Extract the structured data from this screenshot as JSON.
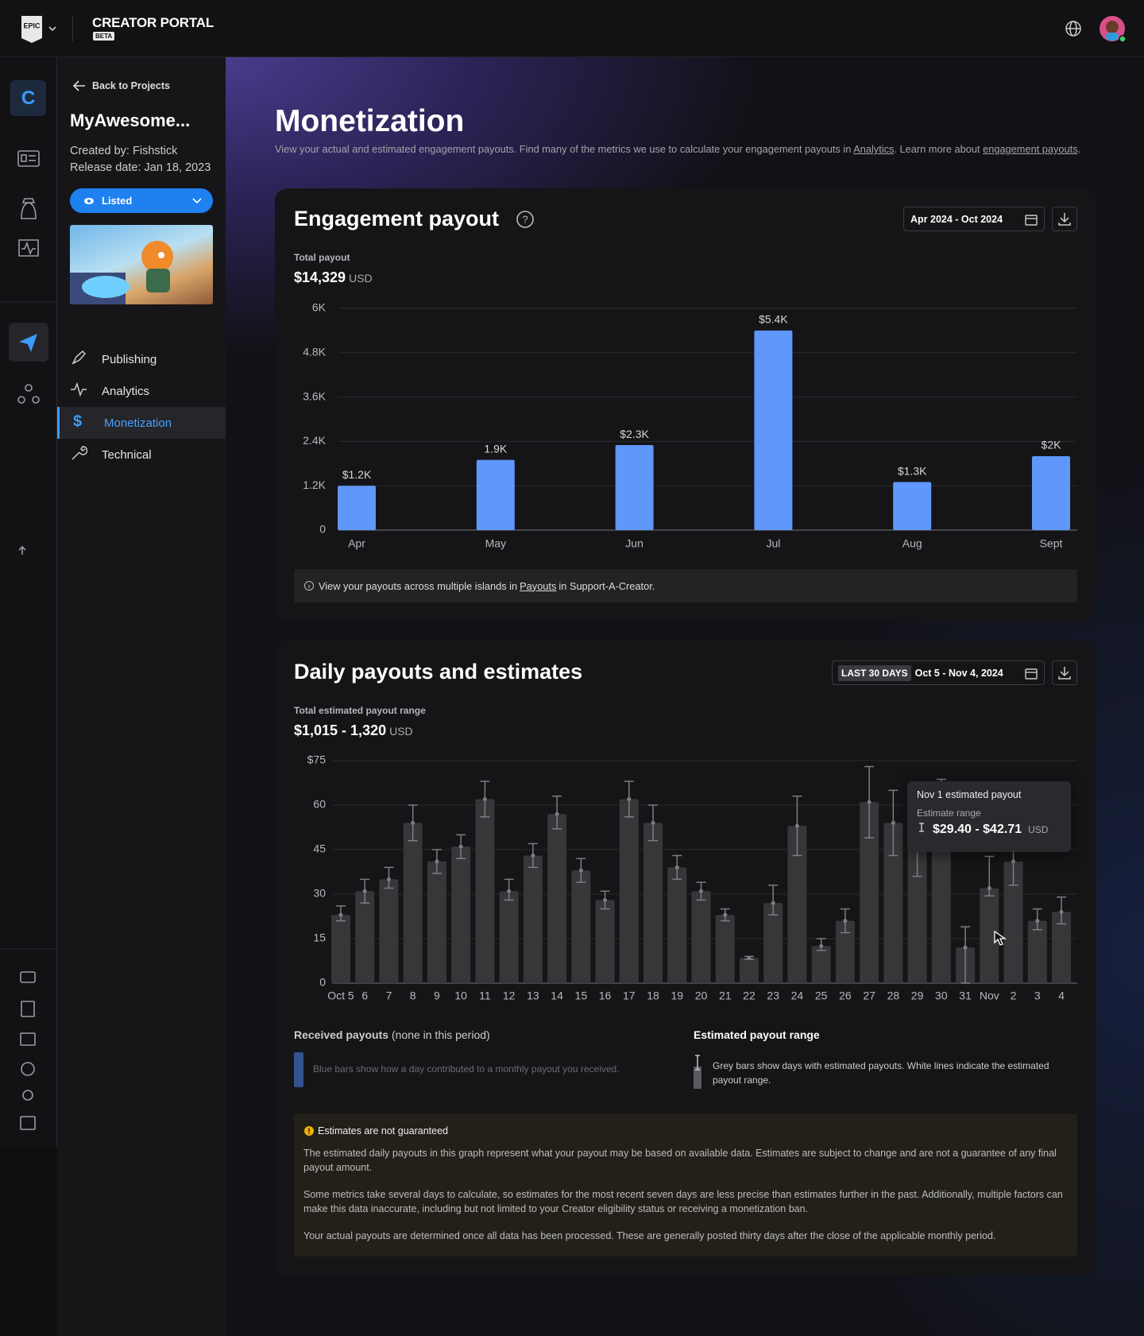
{
  "header": {
    "brand": "CREATOR PORTAL",
    "badge": "BETA"
  },
  "sidebar": {
    "back": "Back to Projects",
    "project": "MyAwesome...",
    "created": "Created by: Fishstick",
    "released": "Release date: Jan 18, 2023",
    "status": "Listed",
    "nav": [
      "Publishing",
      "Analytics",
      "Monetization",
      "Technical"
    ]
  },
  "page": {
    "title": "Monetization",
    "intro": [
      "View your actual and estimated engagement payouts. Find many of the metrics we use to calculate your engagement payouts in ",
      "Analytics",
      ". Learn more about ",
      "engagement payouts",
      "."
    ]
  },
  "engagement": {
    "title": "Engagement payout",
    "date_range": "Apr 2024 - Oct 2024",
    "total_label": "Total payout",
    "total": "$14,329",
    "unit": "USD",
    "note": [
      "View your payouts across multiple islands in ",
      "Payouts",
      " in Support-A-Creator."
    ]
  },
  "daily": {
    "title": "Daily payouts and estimates",
    "badge": "LAST 30 DAYS",
    "date_range": "Oct 5 - Nov 4, 2024",
    "total_label": "Total estimated payout range",
    "total": "$1,015 - 1,320",
    "unit": "USD",
    "tooltip": {
      "title": "Nov 1 estimated payout",
      "label": "Estimate range",
      "range": "$29.40 - $42.71",
      "unit": "USD"
    },
    "legend": {
      "received_title": "Received payouts",
      "received_note": "(none in this period)",
      "received_text": "Blue bars show how a day contributed to a monthly payout you received.",
      "estimated_title": "Estimated payout range",
      "estimated_text": "Grey bars show days with estimated payouts. White lines indicate the estimated payout range."
    },
    "warning": {
      "title": "Estimates are not guaranteed",
      "paragraphs": [
        "The estimated daily payouts in this graph represent what your payout may be based on available data. Estimates are subject to change and are not a guarantee of any final payout amount.",
        "Some metrics take several days to calculate, so estimates for the most recent seven days are less precise than estimates further in the past. Additionally, multiple factors can make this data inaccurate, including but not limited to your Creator eligibility status or receiving a monetization ban.",
        "Your actual payouts are determined once all data has been processed. These are generally posted thirty days after the close of the applicable monthly period."
      ]
    }
  },
  "chart_data": [
    {
      "type": "bar",
      "categories": [
        "Apr",
        "May",
        "Jun",
        "Jul",
        "Aug",
        "Sept"
      ],
      "values": [
        1200,
        1900,
        2300,
        5400,
        1300,
        2000
      ],
      "value_labels": [
        "$1.2K",
        "1.9K",
        "$2.3K",
        "$5.4K",
        "$1.3K",
        "$2K"
      ],
      "color": "#5f97fb",
      "ylim": [
        0,
        6000
      ],
      "yticks": [
        0,
        {
          "value": 1200,
          "label": "1.2K"
        },
        {
          "value": 2400,
          "label": "2.4K"
        },
        {
          "value": 3600,
          "label": "3.6K"
        },
        {
          "value": 4800,
          "label": "4.8K"
        },
        {
          "value": 6000,
          "label": "6K"
        }
      ],
      "grid": true
    },
    {
      "type": "bar",
      "categories": [
        "Oct 5",
        "6",
        "7",
        "8",
        "9",
        "10",
        "11",
        "12",
        "13",
        "14",
        "15",
        "16",
        "17",
        "18",
        "19",
        "20",
        "21",
        "22",
        "23",
        "24",
        "25",
        "26",
        "27",
        "28",
        "29",
        "30",
        "31",
        "Nov",
        "2",
        "3",
        "4"
      ],
      "values": [
        23,
        31,
        35,
        54,
        41,
        46,
        62,
        31,
        43,
        57,
        38,
        28,
        62,
        54,
        39,
        31,
        23,
        8.5,
        27,
        53,
        12.5,
        21,
        61,
        54,
        45,
        60,
        12,
        32,
        41,
        21,
        24
      ],
      "low": [
        21,
        27,
        32,
        48,
        37,
        42,
        56,
        28,
        39,
        52,
        34,
        25,
        56,
        48,
        35,
        28,
        21,
        8,
        23,
        43,
        11,
        17,
        49,
        43,
        36,
        50,
        0,
        29.4,
        33,
        18,
        20
      ],
      "high": [
        26,
        35,
        39,
        60,
        45,
        50,
        68,
        35,
        47,
        63,
        42,
        31,
        68,
        60,
        43,
        34,
        25,
        9,
        33,
        63,
        15,
        25,
        73,
        65,
        54,
        68.7,
        19,
        42.71,
        45,
        25,
        29
      ],
      "color": "#37373a",
      "error_color": "#7d7d82",
      "ylim": [
        0,
        75
      ],
      "yticks": [
        0,
        15,
        30,
        45,
        60,
        {
          "value": 75,
          "label": "$75"
        }
      ],
      "grid": true
    }
  ]
}
